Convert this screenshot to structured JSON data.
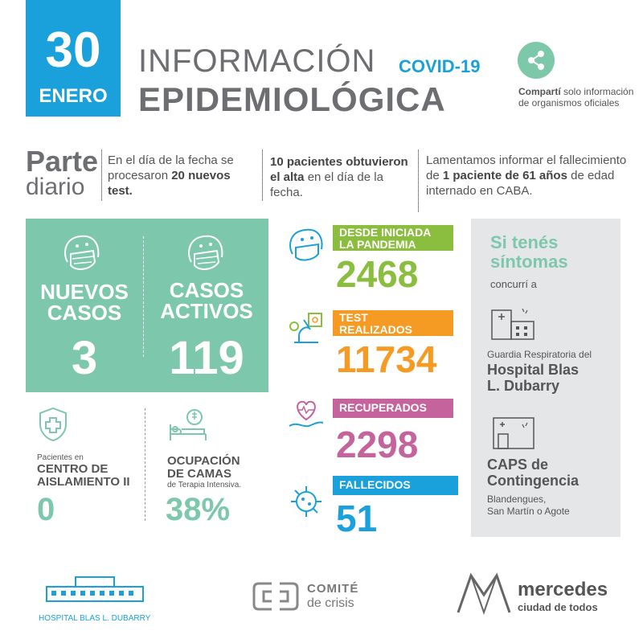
{
  "header": {
    "day": "30",
    "month": "ENERO",
    "title_line1": "INFORMACIÓN",
    "covid_tag": "COVID-19",
    "title_line2": "EPIDEMIOLÓGICA",
    "share_bold": "Compartí",
    "share_rest": " solo información de organismos oficiales"
  },
  "parte": {
    "word1": "Parte",
    "word2": "diario",
    "col1_a": "En el día de la fecha se procesaron ",
    "col1_b": "20 nuevos test.",
    "col2_a": "10 pacientes obtuvieron el alta",
    "col2_b": " en el día de la fecha.",
    "col3_a": "Lamentamos informar el fallecimiento de ",
    "col3_b": "1 paciente de 61 años",
    "col3_c": " de edad internado en CABA."
  },
  "green": {
    "nuevos_label_1": "NUEVOS",
    "nuevos_label_2": "CASOS",
    "nuevos_value": "3",
    "activos_label_1": "CASOS",
    "activos_label_2": "ACTIVOS",
    "activos_value": "119"
  },
  "lower_left": {
    "aisl_small": "Pacientes en",
    "aisl_label_1": "CENTRO DE",
    "aisl_label_2": "AISLAMIENTO II",
    "aisl_value": "0",
    "camas_label_1": "OCUPACIÓN",
    "camas_label_2": "DE CAMAS",
    "camas_small": "de Terapia Intensiva.",
    "camas_value": "38%"
  },
  "stats": [
    {
      "label_1": "DESDE INICIADA",
      "label_2": "LA PANDEMIA",
      "value": "2468",
      "color": "#8bbd3f"
    },
    {
      "label_1": "TEST",
      "label_2": "REALIZADOS",
      "value": "11734",
      "color": "#f59a23"
    },
    {
      "label_1": "RECUPERADOS",
      "label_2": "",
      "value": "2298",
      "color": "#c5649c"
    },
    {
      "label_1": "FALLECIDOS",
      "label_2": "",
      "value": "51",
      "color": "#1aa1dc"
    }
  ],
  "sintomas": {
    "line1": "Si tenés",
    "line2": "síntomas",
    "concurri": "concurrí a",
    "guardia": "Guardia Respiratoria del",
    "hospital_1": "Hospital Blas",
    "hospital_2": "L. Dubarry",
    "caps_1": "CAPS de",
    "caps_2": "Contingencia",
    "caps_addr_1": "Blandengues,",
    "caps_addr_2": "San Martín o Agote"
  },
  "footer": {
    "hospital_logo_text": "HOSPITAL BLAS L. DUBARRY",
    "comite_1": "COMITÉ",
    "comite_2": "de crisis",
    "mercedes_1": "mercedes",
    "mercedes_2": "ciudad de todos"
  }
}
